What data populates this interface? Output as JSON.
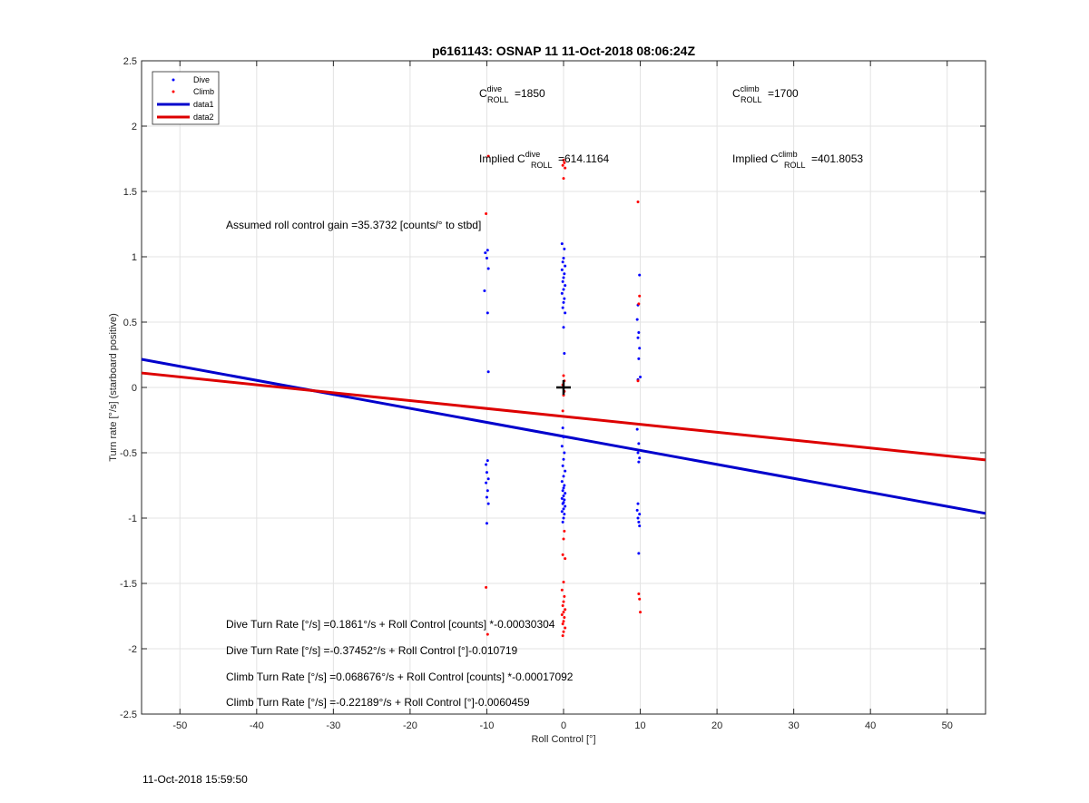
{
  "chart_data": {
    "type": "scatter",
    "title": "p6161143: OSNAP 11 11-Oct-2018 08:06:24Z",
    "xlabel": "Roll Control [°]",
    "ylabel": "Turn rate [°/s] (starboard positive)",
    "xlim": [
      -55,
      55
    ],
    "ylim": [
      -2.5,
      2.5
    ],
    "xticks": [
      -50,
      -40,
      -30,
      -20,
      -10,
      0,
      10,
      20,
      30,
      40,
      50
    ],
    "yticks": [
      2.5,
      2,
      1.5,
      1,
      0.5,
      0,
      -0.5,
      -1,
      -1.5,
      -2,
      -2.5
    ],
    "grid": true,
    "legend_position": "top-left",
    "legend": [
      {
        "label": "Dive",
        "kind": "marker",
        "color": "#0000ff"
      },
      {
        "label": "Climb",
        "kind": "marker",
        "color": "#ff0000"
      },
      {
        "label": "data1",
        "kind": "line",
        "color": "#0000cc"
      },
      {
        "label": "data2",
        "kind": "line",
        "color": "#dd0000"
      }
    ],
    "series": [
      {
        "name": "Dive",
        "color": "#0000ff",
        "points": [
          [
            -10.2,
            1.03
          ],
          [
            -9.9,
            1.05
          ],
          [
            -10.0,
            0.99
          ],
          [
            -9.8,
            0.91
          ],
          [
            -10.3,
            0.74
          ],
          [
            -9.9,
            0.57
          ],
          [
            -9.8,
            0.12
          ],
          [
            -9.9,
            -0.56
          ],
          [
            -10.1,
            -0.59
          ],
          [
            -10.0,
            -0.65
          ],
          [
            -9.8,
            -0.7
          ],
          [
            -10.1,
            -0.73
          ],
          [
            -9.9,
            -0.79
          ],
          [
            -10.0,
            -0.84
          ],
          [
            -9.8,
            -0.89
          ],
          [
            -10.0,
            -1.04
          ],
          [
            -0.2,
            1.1
          ],
          [
            0.1,
            1.06
          ],
          [
            0.0,
            0.99
          ],
          [
            -0.1,
            0.96
          ],
          [
            0.2,
            0.93
          ],
          [
            -0.2,
            0.9
          ],
          [
            0.1,
            0.87
          ],
          [
            0.0,
            0.84
          ],
          [
            -0.1,
            0.81
          ],
          [
            0.2,
            0.78
          ],
          [
            0.0,
            0.75
          ],
          [
            -0.2,
            0.72
          ],
          [
            0.1,
            0.68
          ],
          [
            0.0,
            0.65
          ],
          [
            -0.1,
            0.61
          ],
          [
            0.2,
            0.57
          ],
          [
            0.0,
            0.46
          ],
          [
            0.1,
            0.26
          ],
          [
            -0.1,
            -0.31
          ],
          [
            0.0,
            -0.38
          ],
          [
            -0.2,
            -0.45
          ],
          [
            0.1,
            -0.5
          ],
          [
            0.0,
            -0.55
          ],
          [
            -0.1,
            -0.6
          ],
          [
            0.2,
            -0.64
          ],
          [
            0.0,
            -0.68
          ],
          [
            -0.2,
            -0.72
          ],
          [
            0.1,
            -0.75
          ],
          [
            0.0,
            -0.77
          ],
          [
            -0.1,
            -0.79
          ],
          [
            0.2,
            -0.81
          ],
          [
            0.0,
            -0.83
          ],
          [
            -0.2,
            -0.85
          ],
          [
            0.1,
            -0.86
          ],
          [
            0.0,
            -0.88
          ],
          [
            -0.1,
            -0.89
          ],
          [
            0.2,
            -0.91
          ],
          [
            0.0,
            -0.93
          ],
          [
            -0.2,
            -0.95
          ],
          [
            0.1,
            -0.97
          ],
          [
            0.0,
            -1.0
          ],
          [
            -0.1,
            -1.03
          ],
          [
            9.9,
            0.86
          ],
          [
            9.7,
            0.63
          ],
          [
            9.6,
            0.52
          ],
          [
            9.8,
            0.42
          ],
          [
            9.7,
            0.38
          ],
          [
            9.9,
            0.3
          ],
          [
            9.8,
            0.22
          ],
          [
            10.0,
            0.08
          ],
          [
            9.7,
            0.06
          ],
          [
            9.6,
            -0.32
          ],
          [
            9.8,
            -0.43
          ],
          [
            9.7,
            -0.5
          ],
          [
            9.9,
            -0.54
          ],
          [
            9.8,
            -0.57
          ],
          [
            9.7,
            -0.89
          ],
          [
            9.6,
            -0.94
          ],
          [
            9.9,
            -0.97
          ],
          [
            9.7,
            -1.0
          ],
          [
            9.8,
            -1.03
          ],
          [
            9.9,
            -1.06
          ],
          [
            9.8,
            -1.27
          ]
        ]
      },
      {
        "name": "Climb",
        "color": "#ff0000",
        "points": [
          [
            -10.1,
            1.33
          ],
          [
            -9.8,
            1.77
          ],
          [
            -10.1,
            -1.53
          ],
          [
            -9.9,
            -1.89
          ],
          [
            0.0,
            1.74
          ],
          [
            0.1,
            1.72
          ],
          [
            -0.1,
            1.7
          ],
          [
            0.2,
            1.68
          ],
          [
            0.0,
            1.6
          ],
          [
            0.0,
            0.09
          ],
          [
            0.1,
            0.05
          ],
          [
            -0.1,
            0.02
          ],
          [
            0.1,
            -0.03
          ],
          [
            0.0,
            -0.06
          ],
          [
            -0.1,
            -0.18
          ],
          [
            0.1,
            -1.1
          ],
          [
            0.0,
            -1.16
          ],
          [
            -0.1,
            -1.28
          ],
          [
            0.2,
            -1.31
          ],
          [
            0.0,
            -1.49
          ],
          [
            -0.2,
            -1.55
          ],
          [
            0.1,
            -1.6
          ],
          [
            0.0,
            -1.64
          ],
          [
            -0.1,
            -1.67
          ],
          [
            0.2,
            -1.7
          ],
          [
            0.0,
            -1.72
          ],
          [
            -0.2,
            -1.74
          ],
          [
            0.1,
            -1.76
          ],
          [
            0.0,
            -1.79
          ],
          [
            -0.1,
            -1.81
          ],
          [
            0.2,
            -1.84
          ],
          [
            0.0,
            -1.87
          ],
          [
            -0.1,
            -1.9
          ],
          [
            9.7,
            1.42
          ],
          [
            9.9,
            0.7
          ],
          [
            9.8,
            0.64
          ],
          [
            9.7,
            0.05
          ],
          [
            9.8,
            -1.58
          ],
          [
            9.9,
            -1.62
          ],
          [
            10.0,
            -1.72
          ]
        ]
      }
    ],
    "lines": [
      {
        "name": "data1",
        "color": "#0000cc",
        "intercept": -0.37452,
        "slope": -0.010719
      },
      {
        "name": "data2",
        "color": "#dd0000",
        "intercept": -0.22189,
        "slope": -0.0060459
      }
    ],
    "marker": {
      "x": 0,
      "y": 0,
      "symbol": "+"
    },
    "annotations": {
      "c_roll_dive_label": "C",
      "c_roll_dive_sup": "dive",
      "c_roll_dive_sub": "ROLL",
      "c_roll_dive_value": "=1850",
      "c_roll_climb_label": "C",
      "c_roll_climb_sup": "climb",
      "c_roll_climb_sub": "ROLL",
      "c_roll_climb_value": "=1700",
      "implied_dive_label": "Implied C",
      "implied_dive_sup": "dive",
      "implied_dive_sub": "ROLL",
      "implied_dive_value": "=614.1164",
      "implied_climb_label": "Implied C",
      "implied_climb_sup": "climb",
      "implied_climb_sub": "ROLL",
      "implied_climb_value": "=401.8053",
      "gain": "Assumed roll control gain =35.3732 [counts/° to stbd]",
      "eq1": "Dive Turn Rate [°/s] =0.1861°/s + Roll Control [counts] *-0.00030304",
      "eq2": "Dive Turn Rate [°/s] =-0.37452°/s + Roll Control [°]-0.010719",
      "eq3": "Climb Turn Rate [°/s] =0.068676°/s + Roll Control [counts] *-0.00017092",
      "eq4": "Climb Turn Rate [°/s] =-0.22189°/s + Roll Control [°]-0.0060459"
    }
  },
  "footer": {
    "timestamp": "11-Oct-2018 15:59:50"
  }
}
